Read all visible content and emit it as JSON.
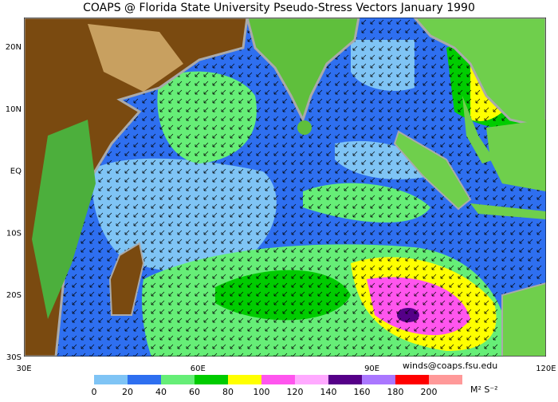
{
  "header": {
    "title": "COAPS @ Florida State University Pseudo-Stress Vectors  January 1990"
  },
  "map": {
    "lat_labels": [
      "20N",
      "10N",
      "EQ",
      "10S",
      "20S",
      "30S"
    ],
    "lon_labels": [
      "30E",
      "60E",
      "90E",
      "120E"
    ],
    "credit": "winds@coaps.fsu.edu"
  },
  "colorbar": {
    "labels": [
      "0",
      "20",
      "40",
      "60",
      "80",
      "100",
      "120",
      "140",
      "160",
      "180",
      "200"
    ],
    "colors": [
      "#7fc4f5",
      "#2e6ff0",
      "#66ee77",
      "#00cc00",
      "#ffff00",
      "#ff55ee",
      "#ffaaff",
      "#550088",
      "#aa77ff",
      "#ff0000",
      "#ff9999"
    ],
    "units": "M² S⁻²"
  }
}
